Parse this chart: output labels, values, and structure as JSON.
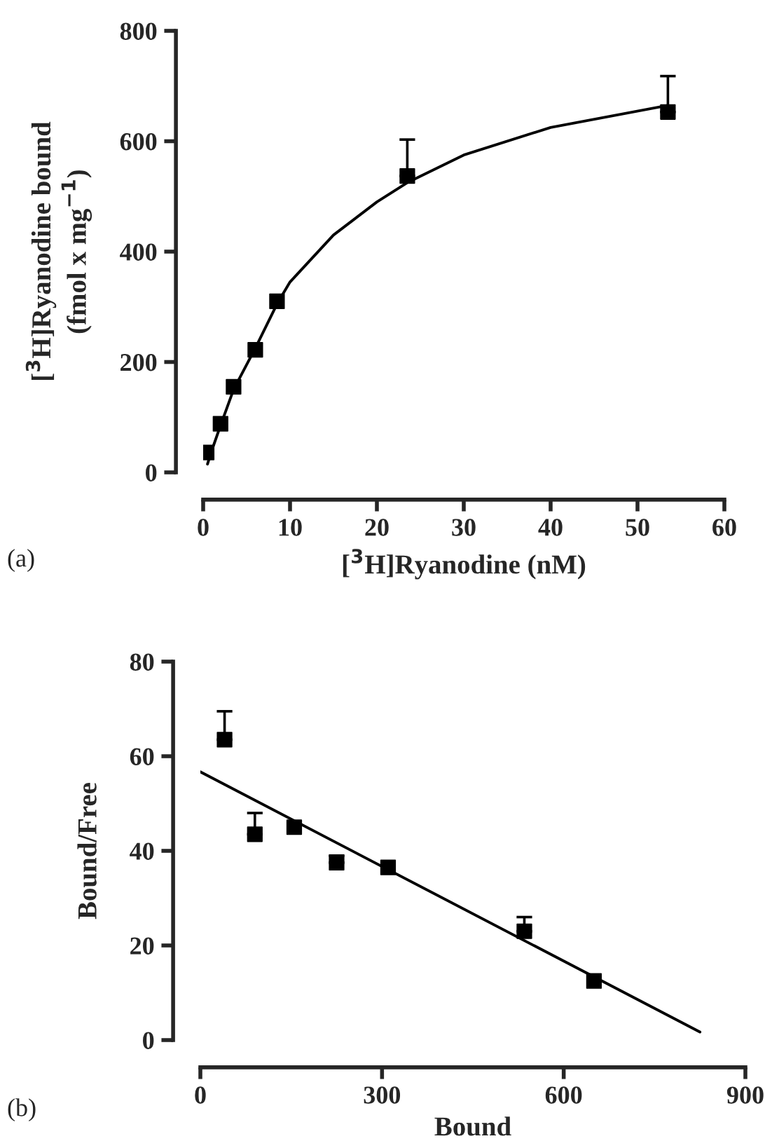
{
  "chart_data": [
    {
      "type": "scatter",
      "xlabel": "[$^{3}$H]Ryanodine (nM)",
      "ylabel": "[$^{3}$H]Ryanodine bound\n(fmol x mg$^{−1}$)",
      "annotations": [
        "(a)"
      ],
      "xlim": [
        0,
        60
      ],
      "xticks": [
        0,
        10,
        20,
        30,
        40,
        50,
        60
      ],
      "ylim": [
        0,
        800
      ],
      "yticks": [
        0,
        200,
        400,
        600,
        800
      ],
      "grid": false,
      "marker": "square",
      "series": [
        {
          "color": "#000000",
          "x": [
            0.4,
            2,
            3.5,
            6,
            8.5,
            23.5,
            53.5
          ],
          "values": [
            36,
            88,
            155,
            222,
            310,
            537,
            653
          ],
          "errors": [
            null,
            null,
            null,
            null,
            null,
            [
              537,
              603
            ],
            [
              653,
              718
            ]
          ]
        },
        {
          "type": "line",
          "color": "#000000",
          "marker": "none",
          "line_style": "solid",
          "x": [
            0.5,
            1,
            2,
            3.5,
            6,
            8.5,
            10,
            15,
            20,
            23.5,
            30,
            40,
            53.5
          ],
          "values": [
            15,
            40,
            85,
            150,
            225,
            305,
            345,
            430,
            490,
            525,
            575,
            625,
            665
          ]
        }
      ]
    },
    {
      "type": "scatter",
      "xlabel": "Bound",
      "ylabel": "Bound/Free",
      "annotations": [
        "(b)"
      ],
      "xlim": [
        0,
        900
      ],
      "xticks": [
        0,
        300,
        600,
        900
      ],
      "ylim": [
        0,
        80
      ],
      "yticks": [
        0,
        20,
        40,
        60,
        80
      ],
      "grid": false,
      "marker": "square",
      "series": [
        {
          "color": "#000000",
          "x": [
            40,
            90,
            155,
            225,
            310,
            535,
            650
          ],
          "values": [
            63.5,
            43.5,
            45,
            37.5,
            36.5,
            23,
            12.5
          ],
          "errors": [
            [
              63.5,
              69.5
            ],
            [
              43.5,
              48
            ],
            null,
            [
              37.5,
              39
            ],
            null,
            [
              23,
              26
            ],
            null
          ]
        },
        {
          "type": "line",
          "color": "#000000",
          "marker": "none",
          "line_style": "solid",
          "x": [
            0,
            825
          ],
          "values": [
            56.7,
            1.7
          ]
        }
      ]
    }
  ]
}
